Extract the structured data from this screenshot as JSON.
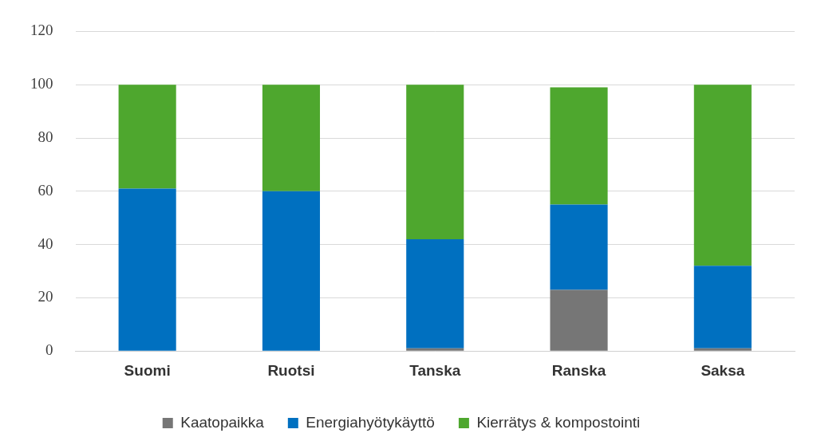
{
  "chart_data": {
    "type": "bar",
    "stacked": true,
    "grid": true,
    "legend": "bottom",
    "categories": [
      "Suomi",
      "Ruotsi",
      "Tanska",
      "Ranska",
      "Saksa"
    ],
    "series": [
      {
        "name": "Kaatopaikka",
        "color": "#767676",
        "values": [
          0,
          0,
          1,
          23,
          1
        ]
      },
      {
        "name": "Energiahyötykäyttö",
        "color": "#0070c0",
        "values": [
          61,
          60,
          41,
          32,
          31
        ]
      },
      {
        "name": "Kierrätys & kompostointi",
        "color": "#4ea72e",
        "values": [
          39,
          40,
          58,
          44,
          68
        ]
      }
    ],
    "ylim": [
      0,
      120
    ],
    "yticks": [
      0,
      20,
      40,
      60,
      80,
      100,
      120
    ]
  }
}
